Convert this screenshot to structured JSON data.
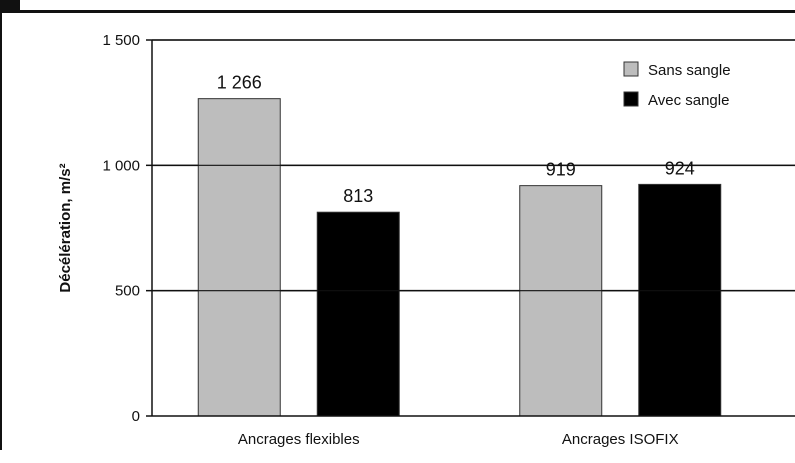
{
  "chart_data": {
    "type": "bar",
    "title": "",
    "xlabel": "",
    "ylabel": "Décélération, m/s²",
    "ylim": [
      0,
      1500
    ],
    "yticks": [
      0,
      500,
      1000,
      1500
    ],
    "ytick_labels": [
      "0",
      "500",
      "1 000",
      "1 500"
    ],
    "grid": true,
    "legend_position": "top-right",
    "categories": [
      "Ancrages flexibles",
      "Ancrages ISOFIX"
    ],
    "series": [
      {
        "name": "Sans sangle",
        "color": "#bdbdbd",
        "values": [
          1266,
          919
        ],
        "labels": [
          "1 266",
          "919"
        ]
      },
      {
        "name": "Avec sangle",
        "color": "#000000",
        "values": [
          813,
          924
        ],
        "labels": [
          "813",
          "924"
        ]
      }
    ]
  }
}
